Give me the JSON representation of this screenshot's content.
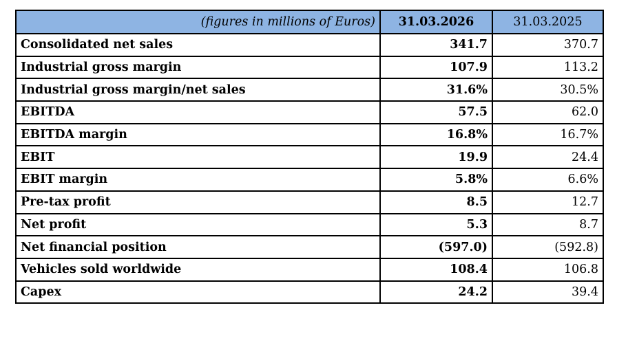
{
  "header": {
    "unit_note": "(figures in millions of Euros)",
    "current_period": "31.03.2026",
    "previous_period": "31.03.2025"
  },
  "rows": [
    {
      "label": "Consolidated net sales",
      "current": "341.7",
      "previous": "370.7"
    },
    {
      "label": "Industrial gross margin",
      "current": "107.9",
      "previous": "113.2"
    },
    {
      "label": "Industrial gross margin/net sales",
      "current": "31.6%",
      "previous": "30.5%"
    },
    {
      "label": "EBITDA",
      "current": "57.5",
      "previous": "62.0"
    },
    {
      "label": "EBITDA margin",
      "current": "16.8%",
      "previous": "16.7%"
    },
    {
      "label": "EBIT",
      "current": "19.9",
      "previous": "24.4"
    },
    {
      "label": "EBIT margin",
      "current": "5.8%",
      "previous": "6.6%"
    },
    {
      "label": "Pre-tax profit",
      "current": "8.5",
      "previous": "12.7"
    },
    {
      "label": "Net profit",
      "current": "5.3",
      "previous": "8.7"
    },
    {
      "label": "Net financial position",
      "current": "(597.0)",
      "previous": "(592.8)"
    },
    {
      "label": "Vehicles sold worldwide",
      "current": "108.4",
      "previous": "106.8"
    },
    {
      "label": "Capex",
      "current": "24.2",
      "previous": "39.4"
    }
  ],
  "colors": {
    "header_background": "#8eb4e3",
    "border": "#000000"
  }
}
